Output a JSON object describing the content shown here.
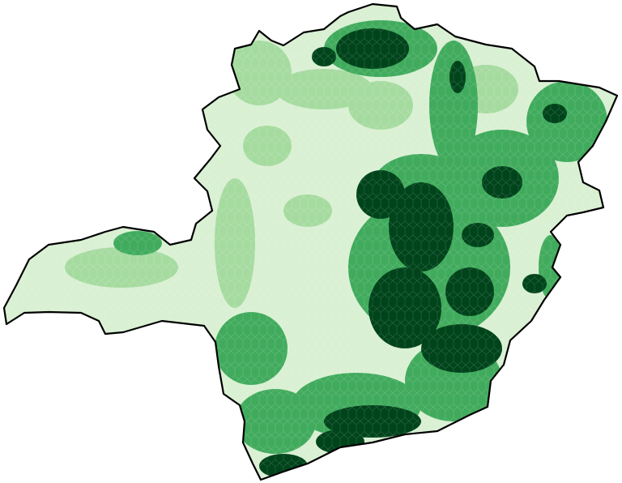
{
  "map": {
    "region_shape": "hexbin choropleth",
    "colors": {
      "level_1": "#d9f0d3",
      "level_2": "#a6dba0",
      "level_3": "#41ab5d",
      "level_4": "#00441b",
      "outline": "#000000",
      "background": "#ffffff"
    }
  }
}
